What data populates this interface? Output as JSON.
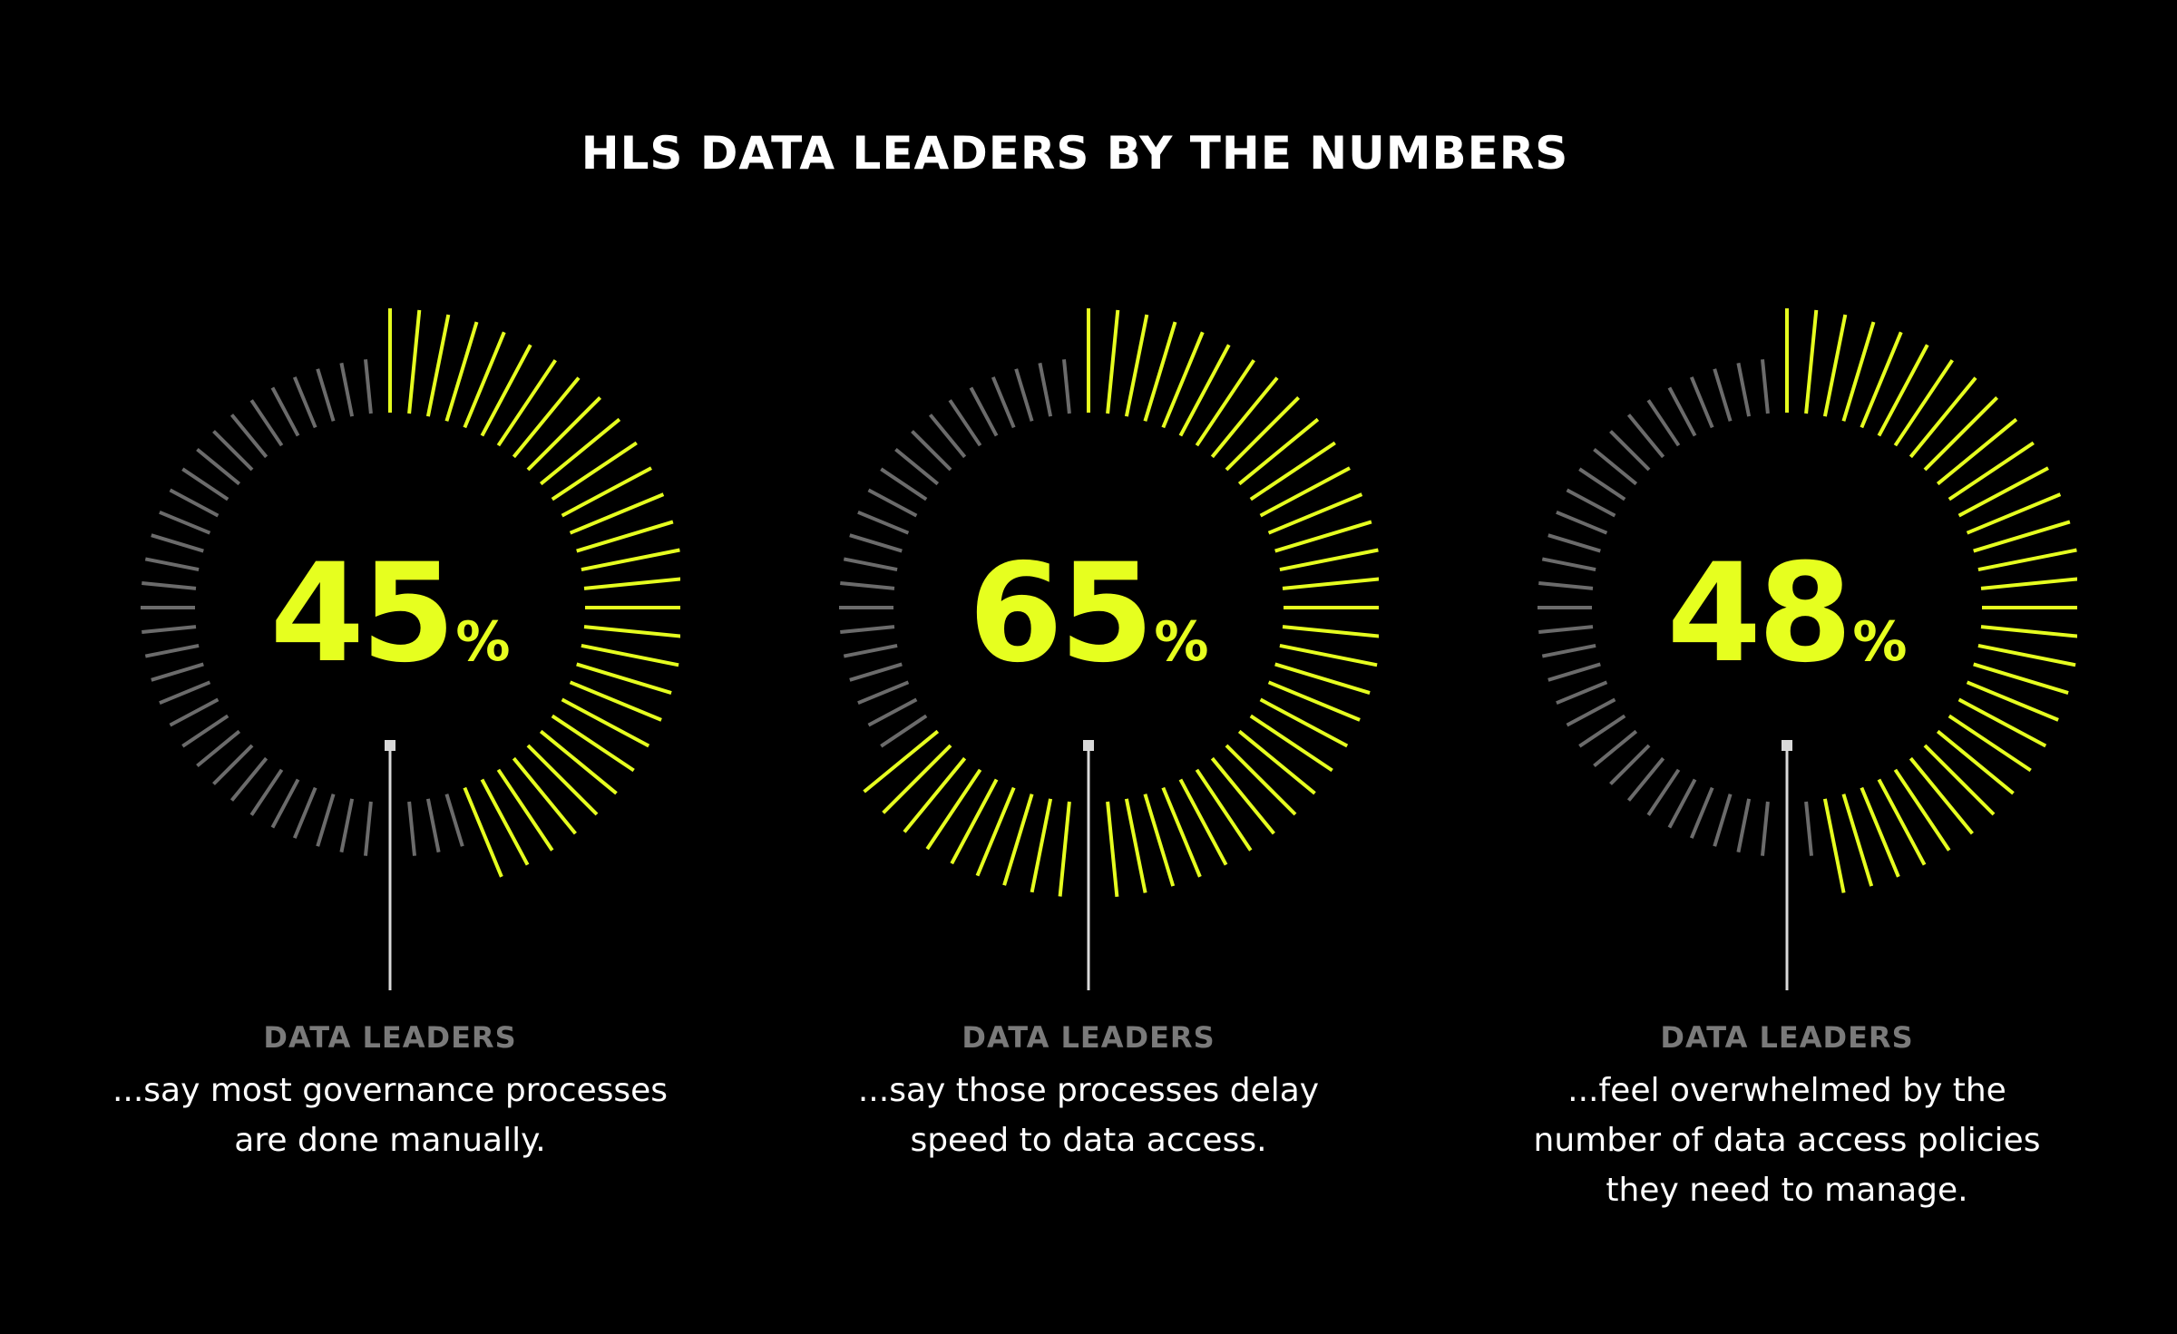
{
  "title": "HLS DATA LEADERS BY THE NUMBERS",
  "colors": {
    "background": "#000000",
    "accent": "#e6ff1f",
    "inactive_tick": "#6b6b6b",
    "label": "#7a7a7a",
    "text": "#ffffff",
    "pointer": "#d9d9d9"
  },
  "chart_data": [
    {
      "type": "radial-gauge",
      "value": 45,
      "max": 100,
      "display_value": "45",
      "unit": "%",
      "label": "DATA LEADERS",
      "description_lines": [
        "...say most governance processes",
        "are done manually."
      ]
    },
    {
      "type": "radial-gauge",
      "value": 65,
      "max": 100,
      "display_value": "65",
      "unit": "%",
      "label": "DATA LEADERS",
      "description_lines": [
        "...say those processes delay",
        "speed to data access."
      ]
    },
    {
      "type": "radial-gauge",
      "value": 48,
      "max": 100,
      "display_value": "48",
      "unit": "%",
      "label": "DATA LEADERS",
      "description_lines": [
        "...feel overwhelmed by the",
        "number of data access policies",
        "they need to manage."
      ]
    }
  ]
}
